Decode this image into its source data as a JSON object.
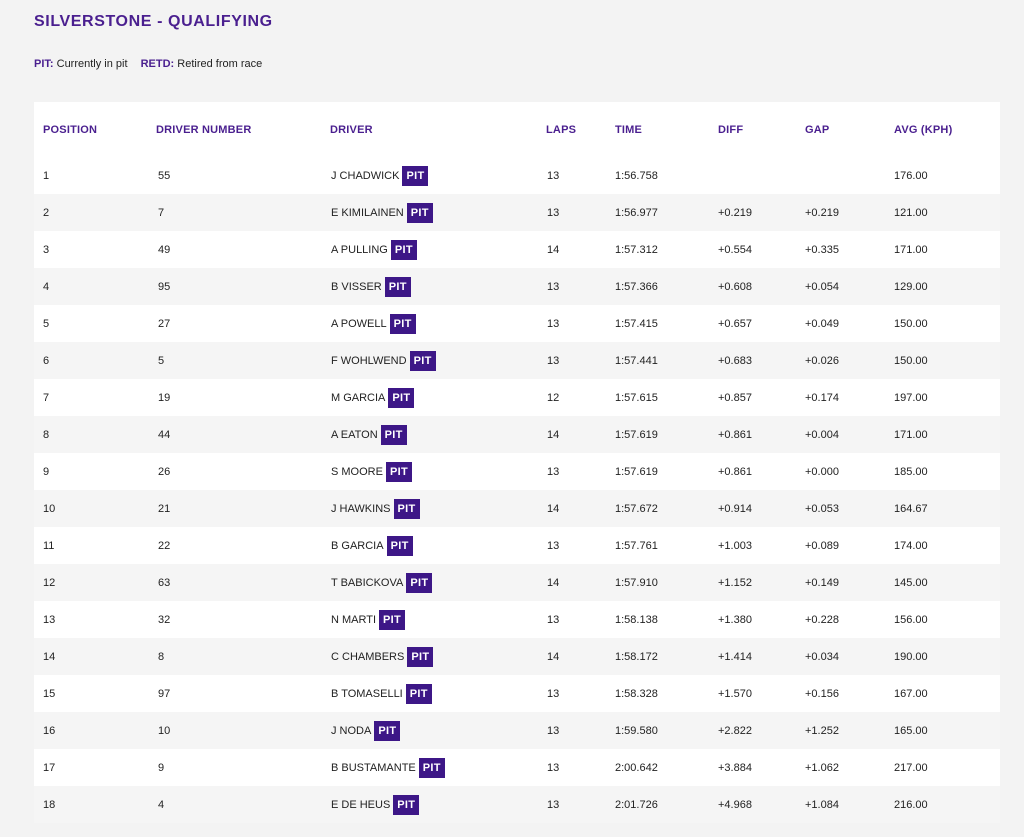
{
  "page": {
    "title": "SILVERSTONE - QUALIFYING"
  },
  "legend": [
    {
      "abbr": "PIT:",
      "text": "Currently in pit"
    },
    {
      "abbr": "RETD:",
      "text": "Retired from race"
    }
  ],
  "colors": {
    "accent": "#4a1f8f",
    "badge_bg": "#3d1787",
    "row_alt": "#f5f5f5",
    "page_bg": "#f3f3f3"
  },
  "table": {
    "columns": {
      "position": "POSITION",
      "driver_number": "DRIVER NUMBER",
      "driver": "DRIVER",
      "laps": "LAPS",
      "time": "TIME",
      "diff": "DIFF",
      "gap": "GAP",
      "avg": "AVG (KPH)"
    },
    "rows": [
      {
        "position": "1",
        "driver_number": "55",
        "driver": "J CHADWICK",
        "badge": "PIT",
        "laps": "13",
        "time": "1:56.758",
        "diff": "",
        "gap": "",
        "avg": "176.00"
      },
      {
        "position": "2",
        "driver_number": "7",
        "driver": "E KIMILAINEN",
        "badge": "PIT",
        "laps": "13",
        "time": "1:56.977",
        "diff": "+0.219",
        "gap": "+0.219",
        "avg": "121.00"
      },
      {
        "position": "3",
        "driver_number": "49",
        "driver": "A PULLING",
        "badge": "PIT",
        "laps": "14",
        "time": "1:57.312",
        "diff": "+0.554",
        "gap": "+0.335",
        "avg": "171.00"
      },
      {
        "position": "4",
        "driver_number": "95",
        "driver": "B VISSER",
        "badge": "PIT",
        "laps": "13",
        "time": "1:57.366",
        "diff": "+0.608",
        "gap": "+0.054",
        "avg": "129.00"
      },
      {
        "position": "5",
        "driver_number": "27",
        "driver": "A POWELL",
        "badge": "PIT",
        "laps": "13",
        "time": "1:57.415",
        "diff": "+0.657",
        "gap": "+0.049",
        "avg": "150.00"
      },
      {
        "position": "6",
        "driver_number": "5",
        "driver": "F WOHLWEND",
        "badge": "PIT",
        "laps": "13",
        "time": "1:57.441",
        "diff": "+0.683",
        "gap": "+0.026",
        "avg": "150.00"
      },
      {
        "position": "7",
        "driver_number": "19",
        "driver": "M GARCIA",
        "badge": "PIT",
        "laps": "12",
        "time": "1:57.615",
        "diff": "+0.857",
        "gap": "+0.174",
        "avg": "197.00"
      },
      {
        "position": "8",
        "driver_number": "44",
        "driver": "A EATON",
        "badge": "PIT",
        "laps": "14",
        "time": "1:57.619",
        "diff": "+0.861",
        "gap": "+0.004",
        "avg": "171.00"
      },
      {
        "position": "9",
        "driver_number": "26",
        "driver": "S MOORE",
        "badge": "PIT",
        "laps": "13",
        "time": "1:57.619",
        "diff": "+0.861",
        "gap": "+0.000",
        "avg": "185.00"
      },
      {
        "position": "10",
        "driver_number": "21",
        "driver": "J HAWKINS",
        "badge": "PIT",
        "laps": "14",
        "time": "1:57.672",
        "diff": "+0.914",
        "gap": "+0.053",
        "avg": "164.67"
      },
      {
        "position": "11",
        "driver_number": "22",
        "driver": "B GARCIA",
        "badge": "PIT",
        "laps": "13",
        "time": "1:57.761",
        "diff": "+1.003",
        "gap": "+0.089",
        "avg": "174.00"
      },
      {
        "position": "12",
        "driver_number": "63",
        "driver": "T BABICKOVA",
        "badge": "PIT",
        "laps": "14",
        "time": "1:57.910",
        "diff": "+1.152",
        "gap": "+0.149",
        "avg": "145.00"
      },
      {
        "position": "13",
        "driver_number": "32",
        "driver": "N MARTI",
        "badge": "PIT",
        "laps": "13",
        "time": "1:58.138",
        "diff": "+1.380",
        "gap": "+0.228",
        "avg": "156.00"
      },
      {
        "position": "14",
        "driver_number": "8",
        "driver": "C CHAMBERS",
        "badge": "PIT",
        "laps": "14",
        "time": "1:58.172",
        "diff": "+1.414",
        "gap": "+0.034",
        "avg": "190.00"
      },
      {
        "position": "15",
        "driver_number": "97",
        "driver": "B TOMASELLI",
        "badge": "PIT",
        "laps": "13",
        "time": "1:58.328",
        "diff": "+1.570",
        "gap": "+0.156",
        "avg": "167.00"
      },
      {
        "position": "16",
        "driver_number": "10",
        "driver": "J NODA",
        "badge": "PIT",
        "laps": "13",
        "time": "1:59.580",
        "diff": "+2.822",
        "gap": "+1.252",
        "avg": "165.00"
      },
      {
        "position": "17",
        "driver_number": "9",
        "driver": "B BUSTAMANTE",
        "badge": "PIT",
        "laps": "13",
        "time": "2:00.642",
        "diff": "+3.884",
        "gap": "+1.062",
        "avg": "217.00"
      },
      {
        "position": "18",
        "driver_number": "4",
        "driver": "E DE HEUS",
        "badge": "PIT",
        "laps": "13",
        "time": "2:01.726",
        "diff": "+4.968",
        "gap": "+1.084",
        "avg": "216.00"
      }
    ]
  }
}
